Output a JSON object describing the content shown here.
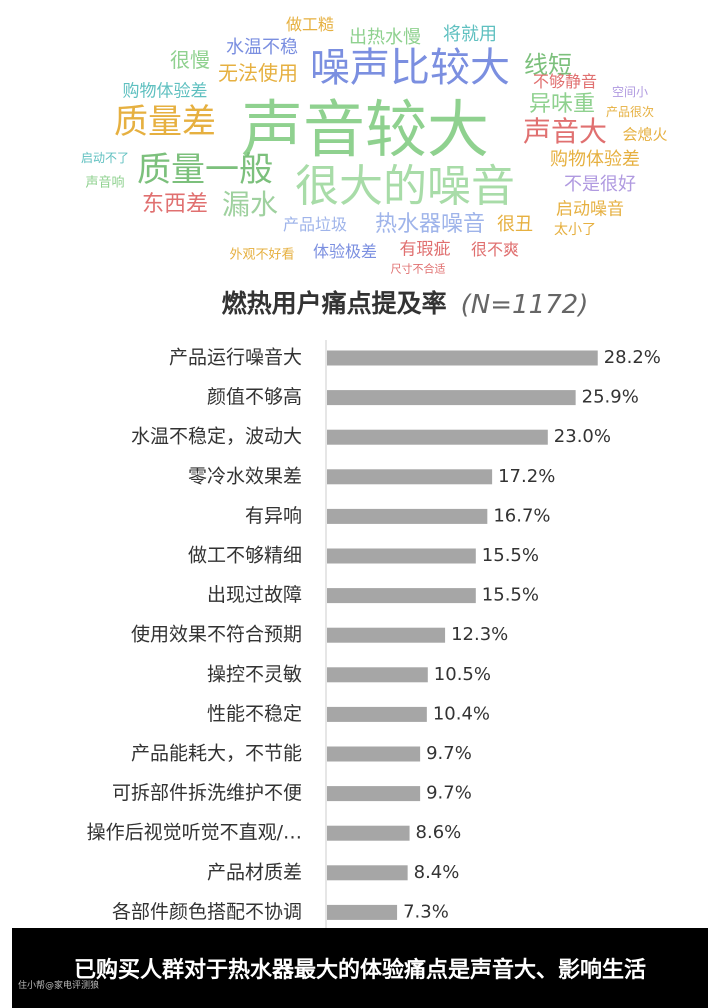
{
  "word_cloud": {
    "words": [
      "声音较大",
      "很大的噪音",
      "噪声比较大",
      "质量差",
      "质量一般",
      "漏水",
      "声音大",
      "线短",
      "异味重",
      "东西差",
      "热水器噪音",
      "无法使用",
      "很慢",
      "水温不稳",
      "出热水慢",
      "将就用",
      "做工糙",
      "购物体验差",
      "不是很好",
      "启动噪音",
      "购物体验差",
      "很丑",
      "很不爽",
      "有瑕疵",
      "体验极差",
      "产品垃圾",
      "不够静音",
      "会熄火",
      "太小了",
      "外观不好看",
      "声音响",
      "启动不了",
      "产品很次",
      "空间小",
      "尺寸不合适"
    ]
  },
  "chart_data": {
    "type": "bar",
    "orientation": "horizontal",
    "title": "燃热用户痛点提及率",
    "subtitle": "(N=1172)",
    "categories": [
      "产品运行噪音大",
      "颜值不够高",
      "水温不稳定，波动大",
      "零冷水效果差",
      "有异响",
      "做工不够精细",
      "出现过故障",
      "使用效果不符合预期",
      "操控不灵敏",
      "性能不稳定",
      "产品能耗大，不节能",
      "可拆部件拆洗维护不便",
      "操作后视觉听觉不直观/…",
      "产品材质差",
      "各部件颜色搭配不协调"
    ],
    "values": [
      28.2,
      25.9,
      23.0,
      17.2,
      16.7,
      15.5,
      15.5,
      12.3,
      10.5,
      10.4,
      9.7,
      9.7,
      8.6,
      8.4,
      7.3
    ],
    "value_labels": [
      "28.2%",
      "25.9%",
      "23.0%",
      "17.2%",
      "16.7%",
      "15.5%",
      "15.5%",
      "12.3%",
      "10.5%",
      "10.4%",
      "9.7%",
      "9.7%",
      "8.6%",
      "8.4%",
      "7.3%"
    ],
    "color": "#a6a6a6"
  },
  "caption": "已购买人群对于热水器最大的体验痛点是声音大、影响生活",
  "watermark": "住小帮@家电评测狼"
}
